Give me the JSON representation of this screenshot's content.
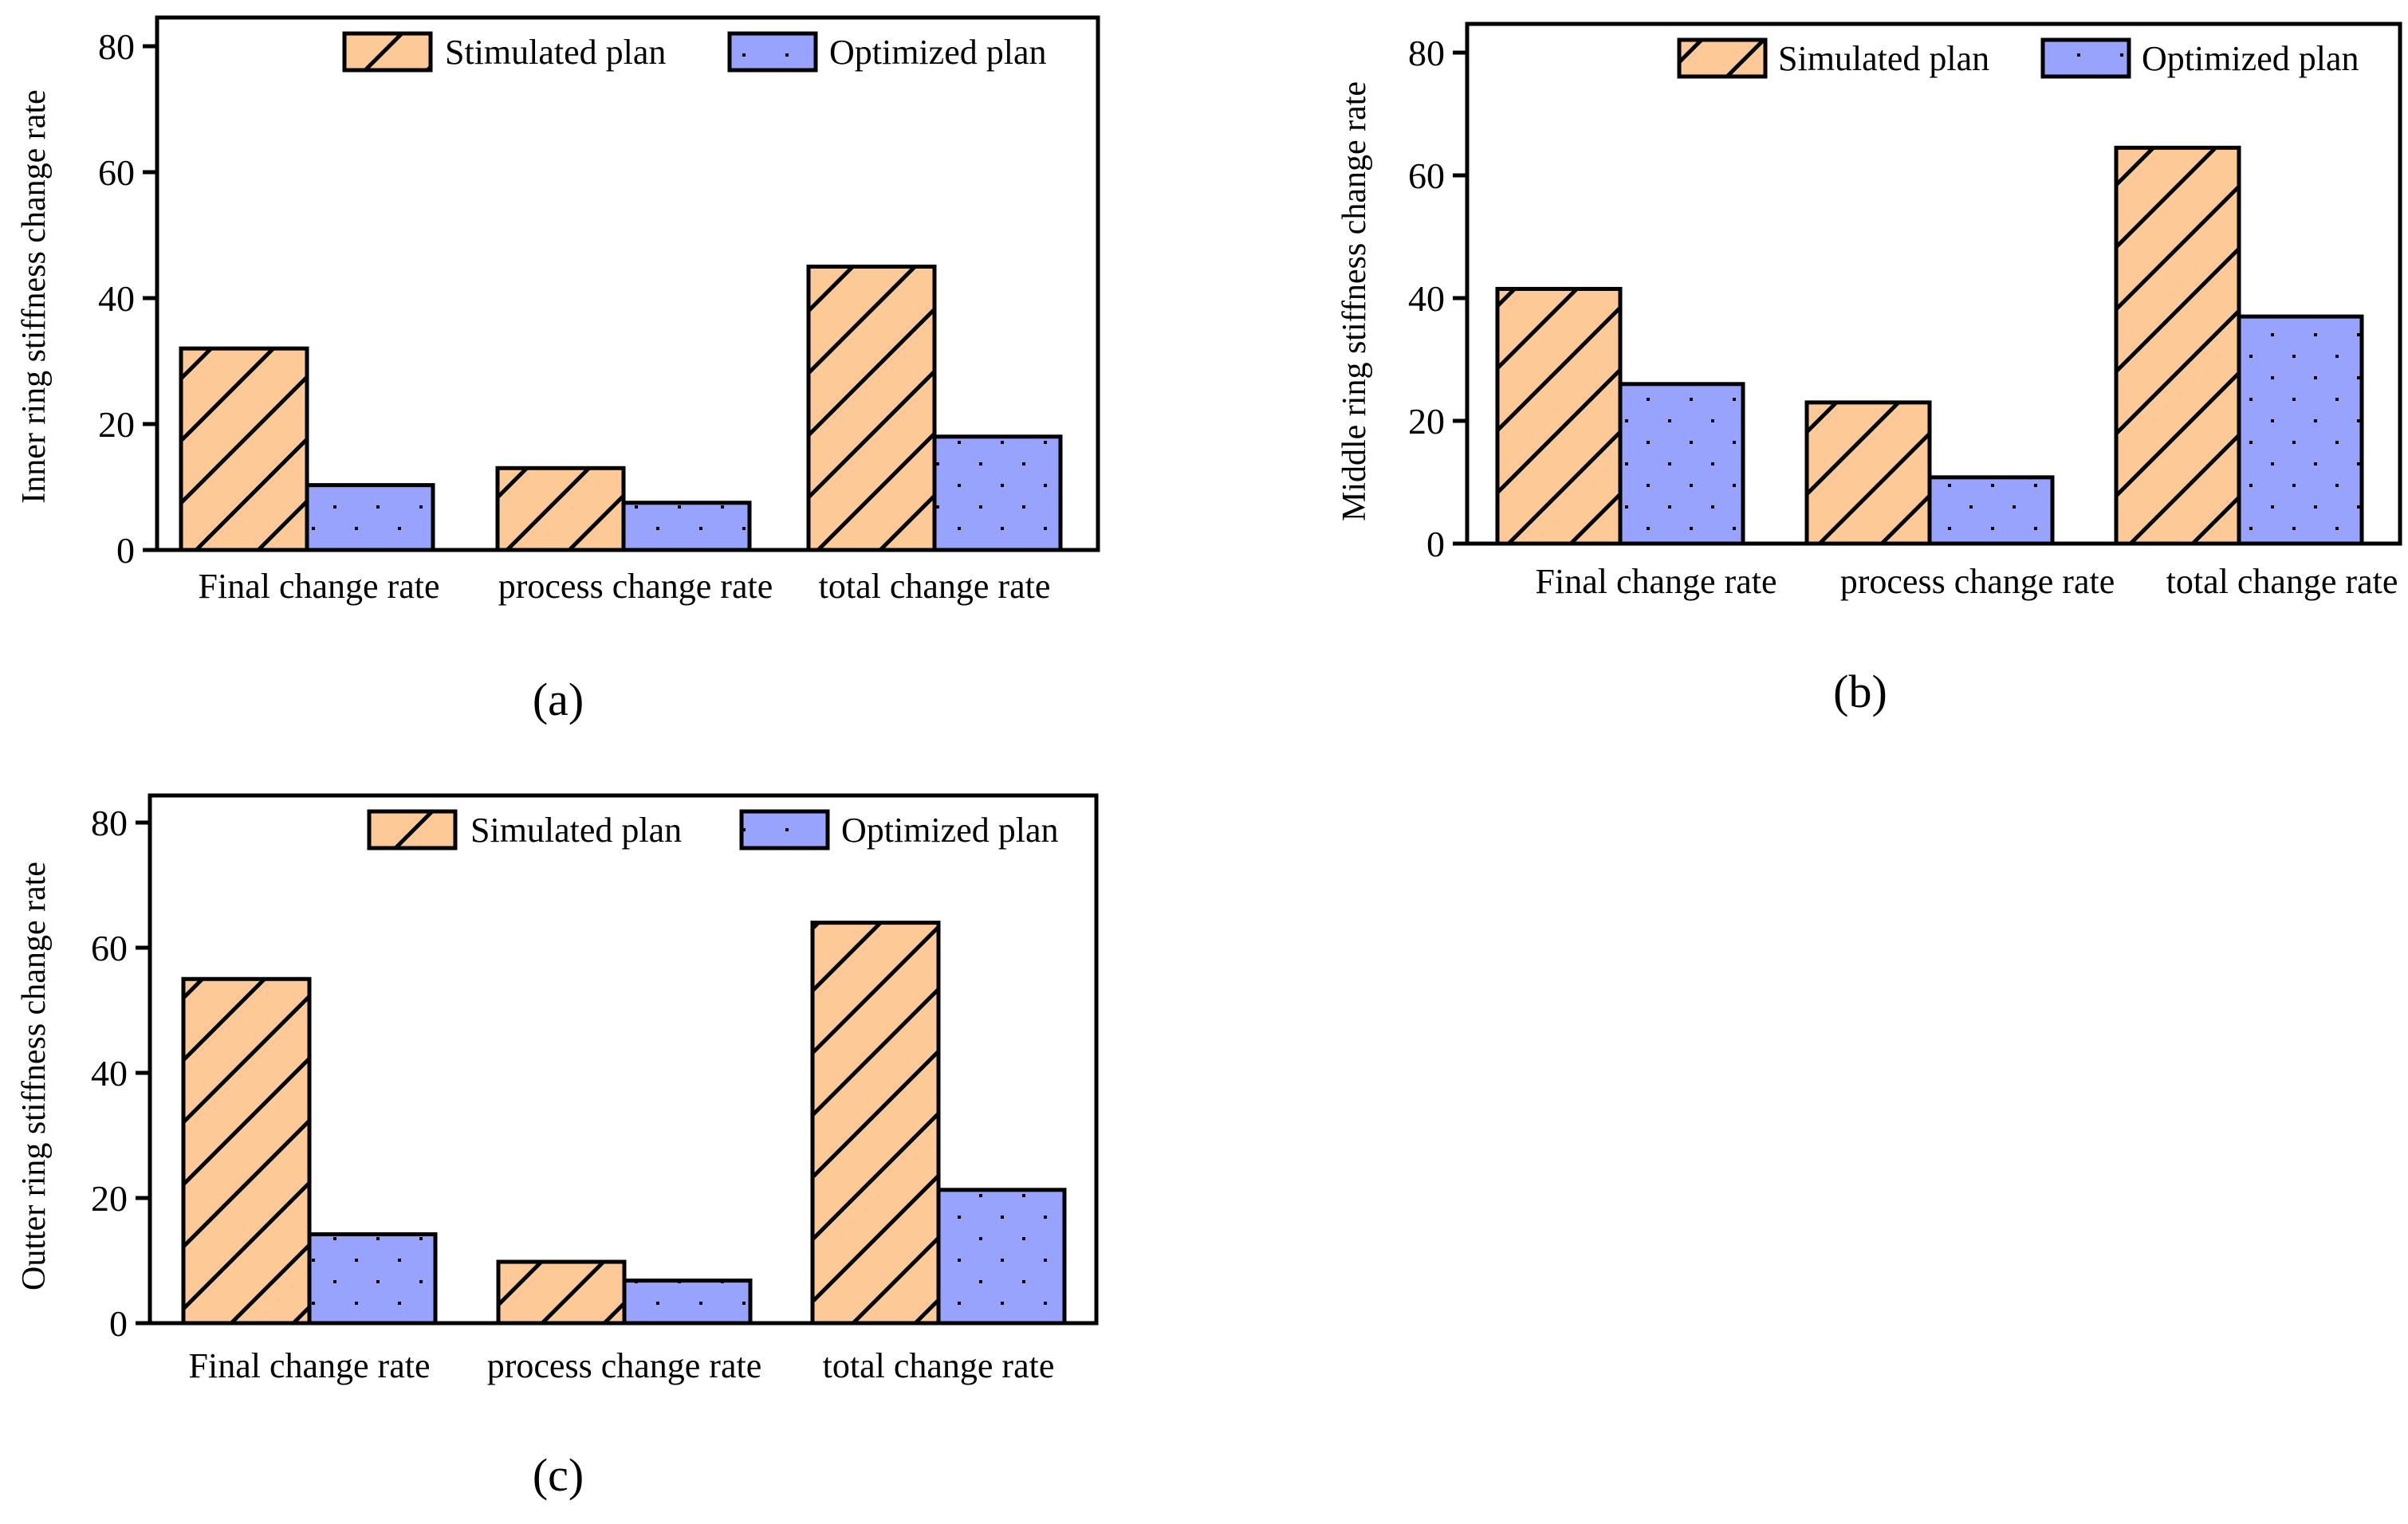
{
  "colors": {
    "simulated_fill": "#FDC996",
    "optimized_fill": "#97A3FC",
    "outline": "#000000"
  },
  "chart_data": [
    {
      "type": "bar",
      "panel_label": "(a)",
      "categories": [
        "Final change rate",
        "process change rate",
        "total change rate"
      ],
      "series": [
        {
          "name": "Stimulated plan",
          "pattern": "diagonal-hatch",
          "values": [
            32,
            13,
            45
          ]
        },
        {
          "name": "Optimized plan",
          "pattern": "dots",
          "values": [
            10.3,
            7.5,
            18
          ]
        }
      ],
      "title": "",
      "xlabel": "",
      "ylabel": "Inner ring stiffness change rate",
      "ylim": [
        0,
        85
      ],
      "yticks": [
        "0",
        "20",
        "40",
        "60",
        "80"
      ],
      "legend": "top-right",
      "grid": false
    },
    {
      "type": "bar",
      "panel_label": "(b)",
      "categories": [
        "Final change rate",
        "process change rate",
        "total change rate"
      ],
      "series": [
        {
          "name": "Simulated plan",
          "pattern": "diagonal-hatch",
          "values": [
            41.5,
            23,
            64.5
          ]
        },
        {
          "name": "Optimized plan",
          "pattern": "dots",
          "values": [
            26,
            10.8,
            37
          ]
        }
      ],
      "title": "",
      "xlabel": "",
      "ylabel": "Middle ring stiffness change rate",
      "ylim": [
        0,
        85
      ],
      "yticks": [
        "0",
        "20",
        "40",
        "60",
        "80"
      ],
      "legend": "top-right",
      "grid": false
    },
    {
      "type": "bar",
      "panel_label": "(c)",
      "categories": [
        "Final change rate",
        "process change rate",
        "total change rate"
      ],
      "series": [
        {
          "name": "Simulated plan",
          "pattern": "diagonal-hatch",
          "values": [
            55,
            9.8,
            64
          ]
        },
        {
          "name": "Optimized plan",
          "pattern": "dots",
          "values": [
            14.2,
            6.8,
            21.3
          ]
        }
      ],
      "title": "",
      "xlabel": "",
      "ylabel": "Outter ring stiffness change rate",
      "ylim": [
        0,
        85
      ],
      "yticks": [
        "0",
        "20",
        "40",
        "60",
        "80"
      ],
      "legend": "top-right",
      "grid": false
    }
  ]
}
